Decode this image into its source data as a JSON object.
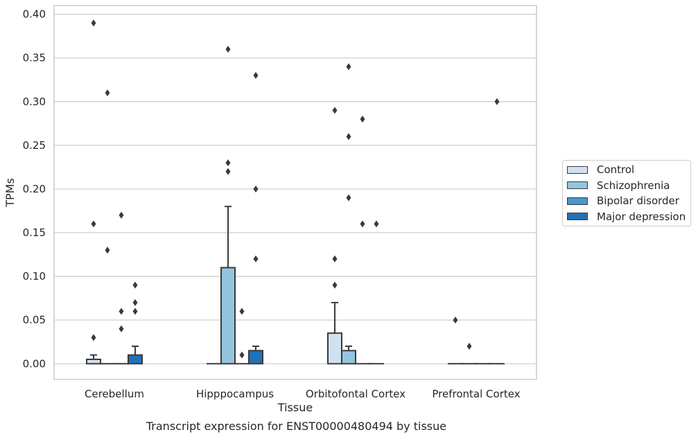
{
  "chart_data": {
    "type": "bar",
    "title": "",
    "caption": "Transcript expression for ENST00000480494 by tissue",
    "xlabel": "Tissue",
    "ylabel": "TPMs",
    "ylim": [
      -0.018,
      0.41
    ],
    "yticks": [
      "0.00",
      "0.05",
      "0.10",
      "0.15",
      "0.20",
      "0.25",
      "0.30",
      "0.35",
      "0.40"
    ],
    "grid": true,
    "legend_position": "right",
    "categories": [
      "Cerebellum",
      "Hipppocampus",
      "Orbitofontal Cortex",
      "Prefrontal Cortex"
    ],
    "series": [
      {
        "name": "Control",
        "color": "#d0e1f2",
        "values": [
          0.005,
          0.0,
          0.035,
          0.0
        ],
        "whisker_max": [
          0.01,
          null,
          0.07,
          null
        ],
        "outliers": [
          [
            0.03,
            0.16,
            0.39
          ],
          [],
          [
            0.09,
            0.12,
            0.29
          ],
          [
            0.05
          ]
        ]
      },
      {
        "name": "Schizophrenia",
        "color": "#94c4df",
        "values": [
          0.0,
          0.11,
          0.015,
          0.0
        ],
        "whisker_max": [
          null,
          0.18,
          0.02,
          null
        ],
        "outliers": [
          [
            0.13,
            0.31
          ],
          [
            0.22,
            0.23,
            0.36
          ],
          [
            0.19,
            0.26,
            0.34
          ],
          [
            0.02
          ]
        ]
      },
      {
        "name": "Bipolar disorder",
        "color": "#4a98c9",
        "values": [
          0.0,
          0.0,
          0.0,
          0.0
        ],
        "whisker_max": [
          null,
          null,
          null,
          null
        ],
        "outliers": [
          [
            0.04,
            0.06,
            0.17
          ],
          [
            0.01,
            0.06
          ],
          [
            0.16,
            0.28
          ],
          []
        ]
      },
      {
        "name": "Major depression",
        "color": "#2171b5",
        "values": [
          0.01,
          0.015,
          0.0,
          0.0
        ],
        "whisker_max": [
          0.02,
          0.02,
          null,
          null
        ],
        "outliers": [
          [
            0.06,
            0.07,
            0.09
          ],
          [
            0.12,
            0.2,
            0.33
          ],
          [
            0.16
          ],
          [
            0.3
          ]
        ]
      }
    ]
  }
}
